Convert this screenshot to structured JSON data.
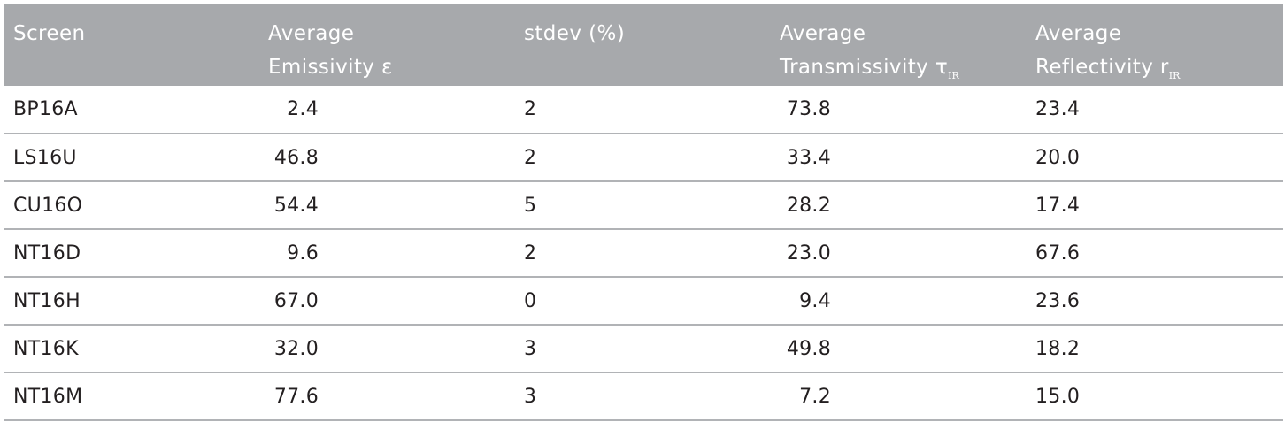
{
  "table": {
    "headers": {
      "screen": "Screen",
      "emissivity_line1": "Average",
      "emissivity_line2": "Emissivity ε",
      "stdev": "stdev (%)",
      "transmissivity_line1": "Average",
      "transmissivity_line2": "Transmissivity τ",
      "transmissivity_sub": "IR",
      "reflectivity_line1": "Average",
      "reflectivity_line2": "Reflectivity r",
      "reflectivity_sub": "IR"
    },
    "rows": [
      {
        "screen": "BP16A",
        "emissivity": "2.4",
        "stdev": "2",
        "transmissivity": "73.8",
        "reflectivity": "23.4"
      },
      {
        "screen": "LS16U",
        "emissivity": "46.8",
        "stdev": "2",
        "transmissivity": "33.4",
        "reflectivity": "20.0"
      },
      {
        "screen": "CU16O",
        "emissivity": "54.4",
        "stdev": "5",
        "transmissivity": "28.2",
        "reflectivity": "17.4"
      },
      {
        "screen": "NT16D",
        "emissivity": "9.6",
        "stdev": "2",
        "transmissivity": "23.0",
        "reflectivity": "67.6"
      },
      {
        "screen": "NT16H",
        "emissivity": "67.0",
        "stdev": "0",
        "transmissivity": "9.4",
        "reflectivity": "23.6"
      },
      {
        "screen": "NT16K",
        "emissivity": "32.0",
        "stdev": "3",
        "transmissivity": "49.8",
        "reflectivity": "18.2"
      },
      {
        "screen": "NT16M",
        "emissivity": "77.6",
        "stdev": "3",
        "transmissivity": "7.2",
        "reflectivity": "15.0"
      }
    ]
  }
}
